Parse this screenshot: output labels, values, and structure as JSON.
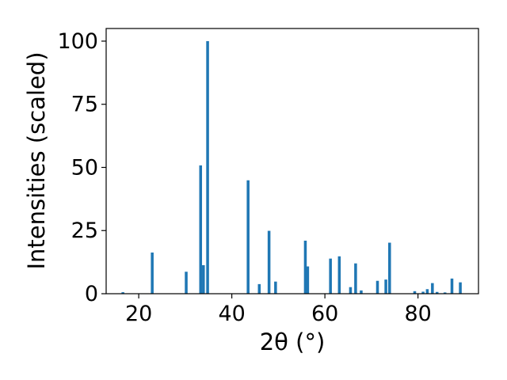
{
  "chart_data": {
    "type": "bar",
    "title": "",
    "xlabel": "2θ (°)",
    "ylabel": "Intensities (scaled)",
    "xlim": [
      13,
      93
    ],
    "ylim": [
      0,
      105
    ],
    "x_ticks": [
      20,
      40,
      60,
      80
    ],
    "y_ticks": [
      0,
      25,
      50,
      75,
      100
    ],
    "grid": false,
    "legend": "none",
    "bar_color": "#1f77b4",
    "bar_width_deg": 0.6,
    "points": [
      {
        "x": 16.6,
        "y": 0.6
      },
      {
        "x": 22.9,
        "y": 16.3
      },
      {
        "x": 30.2,
        "y": 8.7
      },
      {
        "x": 33.3,
        "y": 50.8
      },
      {
        "x": 33.9,
        "y": 11.3
      },
      {
        "x": 34.8,
        "y": 100
      },
      {
        "x": 43.5,
        "y": 44.9
      },
      {
        "x": 45.9,
        "y": 3.8
      },
      {
        "x": 48.0,
        "y": 24.9
      },
      {
        "x": 49.4,
        "y": 4.8
      },
      {
        "x": 55.8,
        "y": 21.0
      },
      {
        "x": 56.3,
        "y": 10.8
      },
      {
        "x": 61.2,
        "y": 13.9
      },
      {
        "x": 63.1,
        "y": 14.8
      },
      {
        "x": 65.5,
        "y": 2.6
      },
      {
        "x": 66.6,
        "y": 12.0
      },
      {
        "x": 67.8,
        "y": 1.3
      },
      {
        "x": 71.3,
        "y": 5.1
      },
      {
        "x": 73.1,
        "y": 5.6
      },
      {
        "x": 73.9,
        "y": 20.2
      },
      {
        "x": 79.3,
        "y": 1.0
      },
      {
        "x": 81.1,
        "y": 0.8
      },
      {
        "x": 82.0,
        "y": 1.8
      },
      {
        "x": 83.1,
        "y": 4.2
      },
      {
        "x": 84.1,
        "y": 0.7
      },
      {
        "x": 85.8,
        "y": 0.5
      },
      {
        "x": 87.3,
        "y": 6.0
      },
      {
        "x": 89.1,
        "y": 4.5
      }
    ]
  }
}
